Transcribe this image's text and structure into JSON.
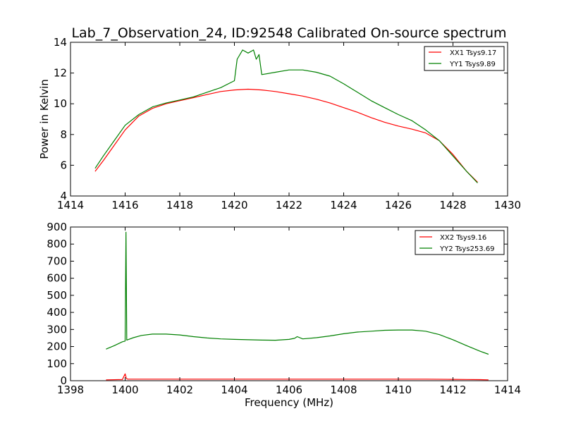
{
  "chart_data": [
    {
      "type": "line",
      "title": "Lab_7_Observation_24, ID:92548 Calibrated On-source spectrum",
      "xlabel": "",
      "ylabel": "Power in Kelvin",
      "xlim": [
        1414,
        1430
      ],
      "ylim": [
        4,
        14
      ],
      "xticks": [
        "1414",
        "1416",
        "1418",
        "1420",
        "1422",
        "1424",
        "1426",
        "1428",
        "1430"
      ],
      "yticks": [
        "4",
        "6",
        "8",
        "10",
        "12",
        "14"
      ],
      "legend": "top-right",
      "series": [
        {
          "name": "XX1 Tsys9.17",
          "color": "#ff0000",
          "x": [
            1414.9,
            1415.2,
            1415.6,
            1416.0,
            1416.5,
            1417.0,
            1417.5,
            1418.0,
            1418.5,
            1419.0,
            1419.5,
            1420.0,
            1420.5,
            1421.0,
            1421.5,
            1422.0,
            1422.5,
            1423.0,
            1423.5,
            1424.0,
            1424.5,
            1425.0,
            1425.5,
            1426.0,
            1426.5,
            1427.0,
            1427.5,
            1428.0,
            1428.5,
            1428.9
          ],
          "y": [
            5.6,
            6.3,
            7.3,
            8.3,
            9.2,
            9.7,
            10.0,
            10.2,
            10.4,
            10.6,
            10.8,
            10.9,
            10.95,
            10.9,
            10.8,
            10.65,
            10.5,
            10.3,
            10.05,
            9.75,
            9.45,
            9.1,
            8.8,
            8.55,
            8.35,
            8.1,
            7.6,
            6.7,
            5.6,
            4.9
          ]
        },
        {
          "name": "YY1 Tsys9.89",
          "color": "#008000",
          "x": [
            1414.9,
            1415.2,
            1415.6,
            1416.0,
            1416.5,
            1417.0,
            1417.5,
            1418.0,
            1418.5,
            1419.0,
            1419.5,
            1420.0,
            1420.1,
            1420.3,
            1420.5,
            1420.7,
            1420.8,
            1420.9,
            1421.0,
            1421.5,
            1422.0,
            1422.5,
            1423.0,
            1423.5,
            1424.0,
            1424.5,
            1425.0,
            1425.5,
            1426.0,
            1426.5,
            1427.0,
            1427.5,
            1428.0,
            1428.5,
            1428.9
          ],
          "y": [
            5.8,
            6.6,
            7.6,
            8.6,
            9.3,
            9.8,
            10.05,
            10.25,
            10.45,
            10.75,
            11.05,
            11.5,
            12.9,
            13.5,
            13.3,
            13.5,
            12.9,
            13.2,
            11.9,
            12.05,
            12.2,
            12.2,
            12.05,
            11.8,
            11.3,
            10.75,
            10.2,
            9.75,
            9.3,
            8.9,
            8.3,
            7.6,
            6.6,
            5.6,
            4.85
          ]
        }
      ]
    },
    {
      "type": "line",
      "title": "",
      "xlabel": "Frequency (MHz)",
      "ylabel": "",
      "xlim": [
        1398,
        1414
      ],
      "ylim": [
        0,
        900
      ],
      "xticks": [
        "1398",
        "1400",
        "1402",
        "1404",
        "1406",
        "1408",
        "1410",
        "1412",
        "1414"
      ],
      "yticks": [
        "0",
        "100",
        "200",
        "300",
        "400",
        "500",
        "600",
        "700",
        "800",
        "900"
      ],
      "legend": "top-right",
      "series": [
        {
          "name": "XX2 Tsys9.16",
          "color": "#ff0000",
          "x": [
            1399.3,
            1399.9,
            1400.0,
            1400.05,
            1400.1,
            1400.3,
            1401.0,
            1402.0,
            1403.0,
            1404.0,
            1405.0,
            1406.0,
            1407.0,
            1408.0,
            1409.0,
            1410.0,
            1411.0,
            1412.0,
            1412.5,
            1413.0,
            1413.3
          ],
          "y": [
            5,
            7,
            40,
            12,
            9,
            9,
            9,
            9,
            9,
            9,
            9,
            9,
            9,
            9,
            9,
            9,
            9,
            8,
            7,
            6,
            5
          ]
        },
        {
          "name": "YY2 Tsys253.69",
          "color": "#008000",
          "x": [
            1399.3,
            1399.6,
            1399.9,
            1400.0,
            1400.03,
            1400.06,
            1400.3,
            1400.6,
            1401.0,
            1401.5,
            1402.0,
            1402.5,
            1403.0,
            1403.5,
            1404.0,
            1404.5,
            1405.0,
            1405.5,
            1406.0,
            1406.2,
            1406.3,
            1406.5,
            1407.0,
            1407.5,
            1408.0,
            1408.5,
            1409.0,
            1409.5,
            1410.0,
            1410.5,
            1411.0,
            1411.5,
            1412.0,
            1412.5,
            1413.0,
            1413.3
          ],
          "y": [
            185,
            205,
            228,
            232,
            870,
            238,
            252,
            265,
            273,
            273,
            268,
            258,
            250,
            245,
            242,
            240,
            238,
            237,
            242,
            248,
            258,
            245,
            252,
            262,
            275,
            285,
            290,
            295,
            297,
            297,
            290,
            270,
            240,
            205,
            172,
            155
          ]
        }
      ]
    }
  ]
}
